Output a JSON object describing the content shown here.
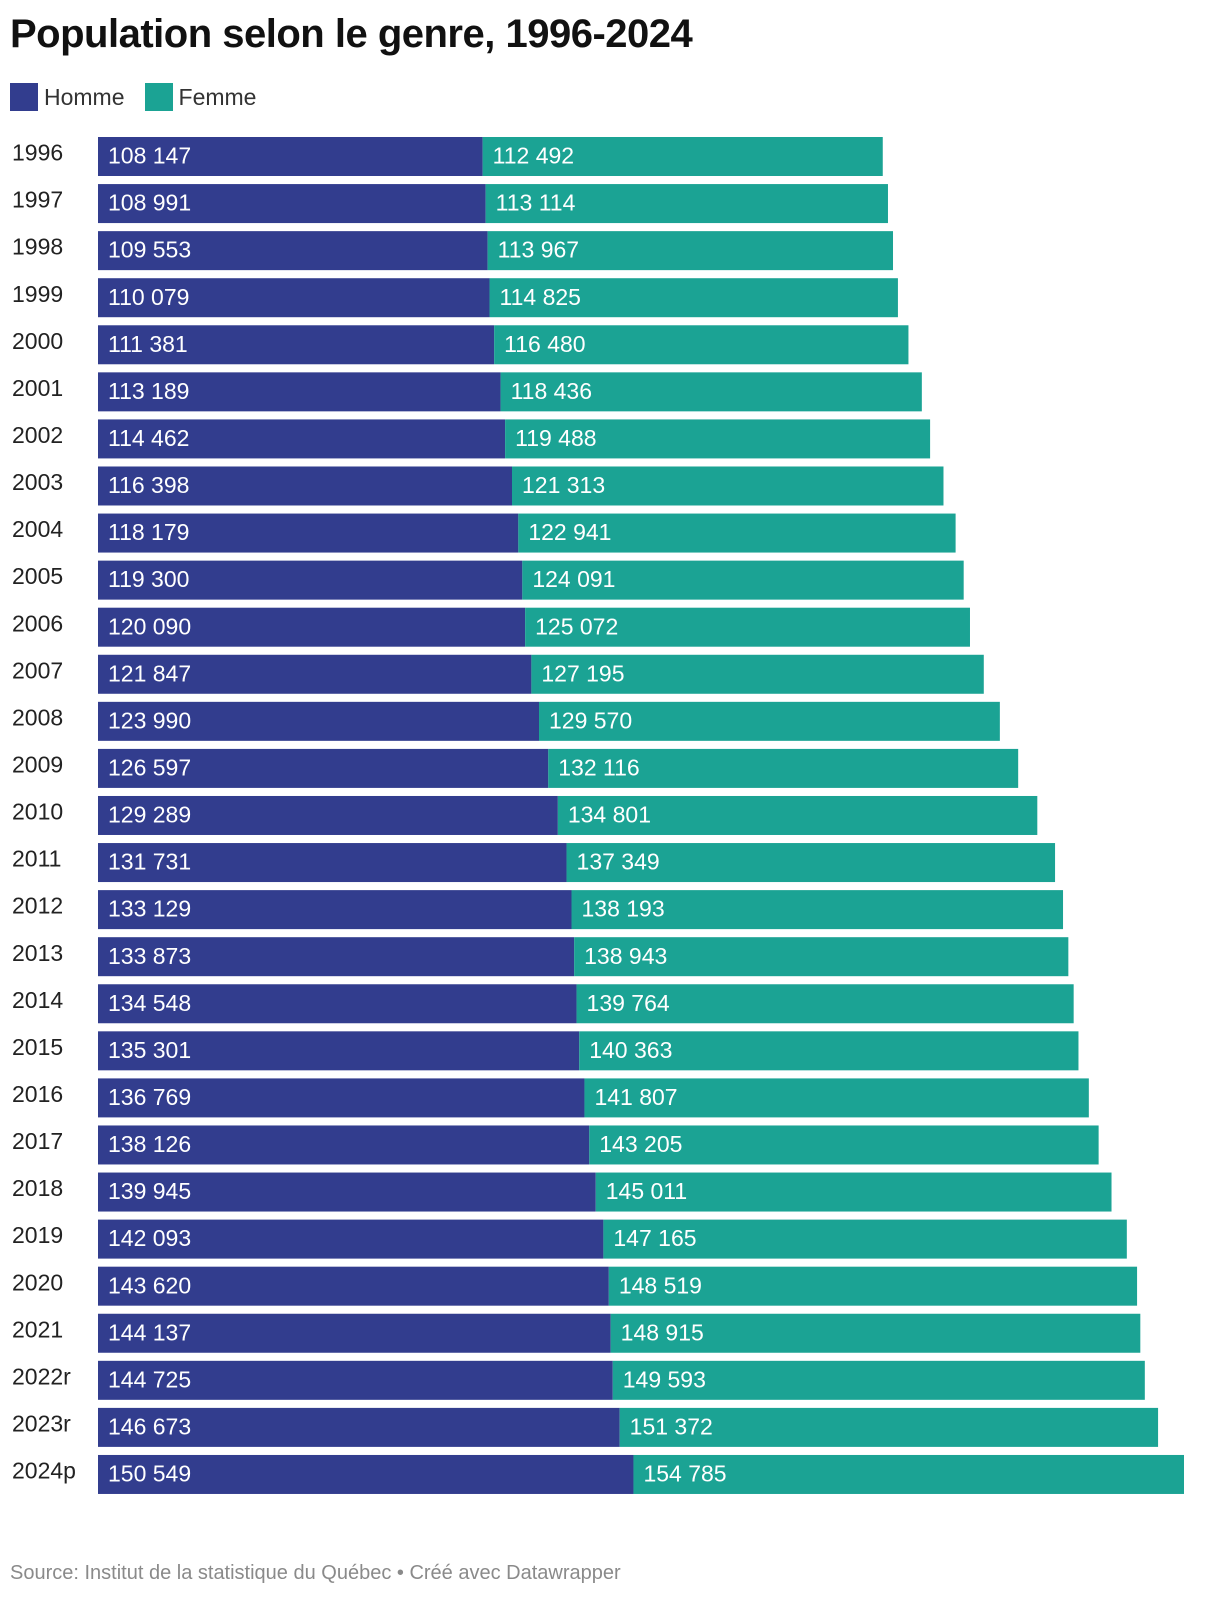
{
  "chart_data": {
    "type": "bar",
    "orientation": "horizontal",
    "stacked": true,
    "title": "Population selon le genre, 1996-2024",
    "categories": [
      "1996",
      "1997",
      "1998",
      "1999",
      "2000",
      "2001",
      "2002",
      "2003",
      "2004",
      "2005",
      "2006",
      "2007",
      "2008",
      "2009",
      "2010",
      "2011",
      "2012",
      "2013",
      "2014",
      "2015",
      "2016",
      "2017",
      "2018",
      "2019",
      "2020",
      "2021",
      "2022r",
      "2023r",
      "2024p"
    ],
    "series": [
      {
        "name": "Homme",
        "color": "#323d8e",
        "values": [
          108147,
          108991,
          109553,
          110079,
          111381,
          113189,
          114462,
          116398,
          118179,
          119300,
          120090,
          121847,
          123990,
          126597,
          129289,
          131731,
          133129,
          133873,
          134548,
          135301,
          136769,
          138126,
          139945,
          142093,
          143620,
          144137,
          144725,
          146673,
          150549
        ],
        "labels": [
          "108 147",
          "108 991",
          "109 553",
          "110 079",
          "111 381",
          "113 189",
          "114 462",
          "116 398",
          "118 179",
          "119 300",
          "120 090",
          "121 847",
          "123 990",
          "126 597",
          "129 289",
          "131 731",
          "133 129",
          "133 873",
          "134 548",
          "135 301",
          "136 769",
          "138 126",
          "139 945",
          "142 093",
          "143 620",
          "144 137",
          "144 725",
          "146 673",
          "150 549"
        ]
      },
      {
        "name": "Femme",
        "color": "#1ba394",
        "values": [
          112492,
          113114,
          113967,
          114825,
          116480,
          118436,
          119488,
          121313,
          122941,
          124091,
          125072,
          127195,
          129570,
          132116,
          134801,
          137349,
          138193,
          138943,
          139764,
          140363,
          141807,
          143205,
          145011,
          147165,
          148519,
          148915,
          149593,
          151372,
          154785
        ],
        "labels": [
          "112 492",
          "113 114",
          "113 967",
          "114 825",
          "116 480",
          "118 436",
          "119 488",
          "121 313",
          "122 941",
          "124 091",
          "125 072",
          "127 195",
          "129 570",
          "132 116",
          "134 801",
          "137 349",
          "138 193",
          "138 943",
          "139 764",
          "140 363",
          "141 807",
          "143 205",
          "145 011",
          "147 165",
          "148 519",
          "148 915",
          "149 593",
          "151 372",
          "154 785"
        ]
      }
    ],
    "legend_position": "top-left",
    "grid": false,
    "source": "Source: Institut de la statistique du Québec • Créé avec Datawrapper"
  }
}
